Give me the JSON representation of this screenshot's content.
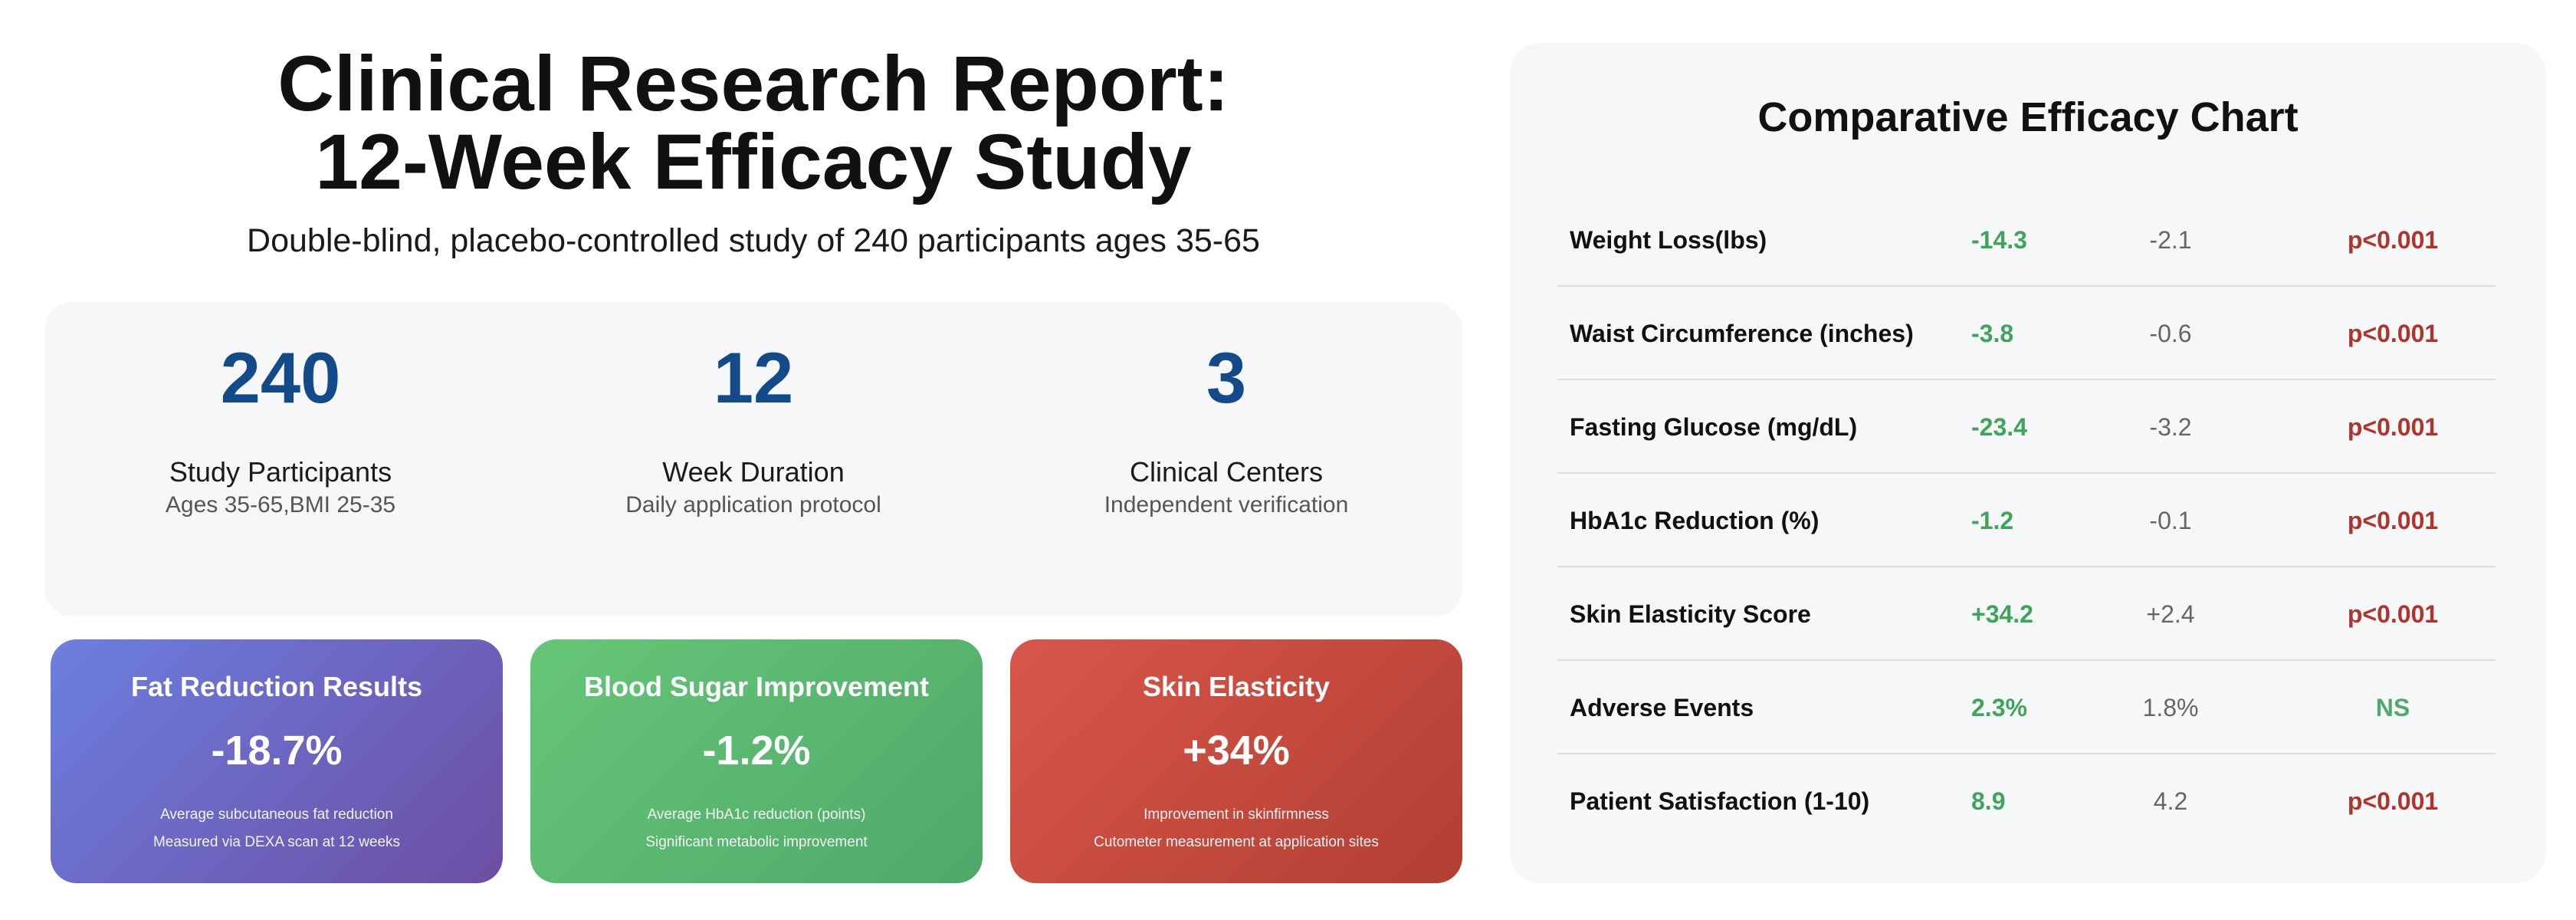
{
  "header": {
    "title_line1": "Clinical Research Report:",
    "title_line2": "12-Week Efficacy Study",
    "subtitle": "Double-blind, placebo-controlled study of 240 participants ages 35-65"
  },
  "stats": [
    {
      "value": "240",
      "label": "Study Participants",
      "sub": "Ages 35-65,BMI 25-35"
    },
    {
      "value": "12",
      "label": "Week Duration",
      "sub": "Daily application protocol"
    },
    {
      "value": "3",
      "label": "Clinical Centers",
      "sub": "Independent verification"
    }
  ],
  "cards": [
    {
      "title": "Fat Reduction Results",
      "value": "-18.7%",
      "line1": "Average subcutaneous fat reduction",
      "line2": "Measured via DEXA scan at 12 weeks"
    },
    {
      "title": "Blood Sugar Improvement",
      "value": "-1.2%",
      "line1": "Average HbA1c reduction (points)",
      "line2": "Significant metabolic improvement"
    },
    {
      "title": "Skin Elasticity",
      "value": "+34%",
      "line1": "Improvement in skinfirmness",
      "line2": "Cutometer measurement at application sites"
    }
  ],
  "chart": {
    "title": "Comparative Efficacy Chart",
    "rows": [
      {
        "metric": "Weight Loss(lbs)",
        "treatment": "-14.3",
        "placebo": "-2.1",
        "p": "p<0.001"
      },
      {
        "metric": "Waist Circumference (inches)",
        "treatment": "-3.8",
        "placebo": "-0.6",
        "p": "p<0.001"
      },
      {
        "metric": "Fasting Glucose (mg/dL)",
        "treatment": "-23.4",
        "placebo": "-3.2",
        "p": "p<0.001"
      },
      {
        "metric": "HbA1c Reduction (%)",
        "treatment": "-1.2",
        "placebo": "-0.1",
        "p": "p<0.001"
      },
      {
        "metric": "Skin Elasticity Score",
        "treatment": "+34.2",
        "placebo": "+2.4",
        "p": "p<0.001"
      },
      {
        "metric": "Adverse Events",
        "treatment": "2.3%",
        "placebo": "1.8%",
        "p": "NS"
      },
      {
        "metric": "Patient Satisfaction (1-10)",
        "treatment": "8.9",
        "placebo": "4.2",
        "p": "p<0.001"
      }
    ]
  },
  "colors": {
    "stat_number": "#124a8a",
    "treatment_green": "#3fa55a",
    "significant_red": "#b0342c",
    "ns_green": "#4fa96a",
    "card_blue": "#6c7fe0",
    "card_green": "#66c677",
    "card_red": "#d9574a"
  }
}
